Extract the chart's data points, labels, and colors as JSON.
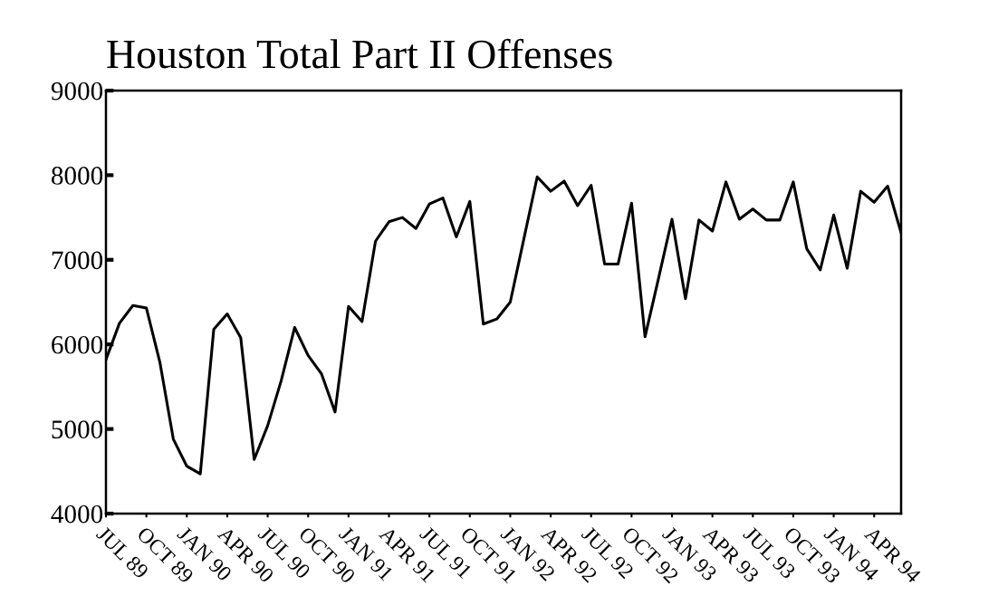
{
  "chart_data": {
    "type": "line",
    "title": "Houston Total Part II Offenses",
    "categories": [
      "JUL 89",
      null,
      null,
      "OCT 89",
      null,
      null,
      "JAN 90",
      null,
      null,
      "APR 90",
      null,
      null,
      "JUL 90",
      null,
      null,
      "OCT 90",
      null,
      null,
      "JAN 91",
      null,
      null,
      "APR 91",
      null,
      null,
      "JUL 91",
      null,
      null,
      "OCT 91",
      null,
      null,
      "JAN 92",
      null,
      null,
      "APR 92",
      null,
      null,
      "JUL 92",
      null,
      null,
      "OCT 92",
      null,
      null,
      "JAN 93",
      null,
      null,
      "APR 93",
      null,
      null,
      "JUL 93",
      null,
      null,
      "OCT 93",
      null,
      null,
      "JAN 94",
      null,
      null,
      "APR 94",
      null,
      null
    ],
    "series": [
      {
        "color": "#000000",
        "values": [
          5820,
          6250,
          6460,
          6430,
          5790,
          4880,
          4560,
          4470,
          6180,
          6360,
          6080,
          4640,
          5040,
          5570,
          6200,
          5870,
          5650,
          5200,
          6450,
          6270,
          7220,
          7450,
          7500,
          7370,
          7660,
          7730,
          7270,
          7690,
          6240,
          6300,
          6500,
          7240,
          7980,
          7810,
          7930,
          7640,
          7880,
          6950,
          6950,
          7670,
          6090,
          6780,
          7480,
          6540,
          7470,
          7340,
          7920,
          7480,
          7600,
          7470,
          7470,
          7920,
          7130,
          6880,
          7530,
          6900,
          7810,
          7680,
          7870,
          7320
        ]
      }
    ],
    "ylim": [
      4000,
      9000
    ],
    "yticks": [
      4000,
      5000,
      6000,
      7000,
      8000,
      9000
    ],
    "grid": false,
    "legend": false,
    "marker": "none",
    "line_style": "solid"
  }
}
